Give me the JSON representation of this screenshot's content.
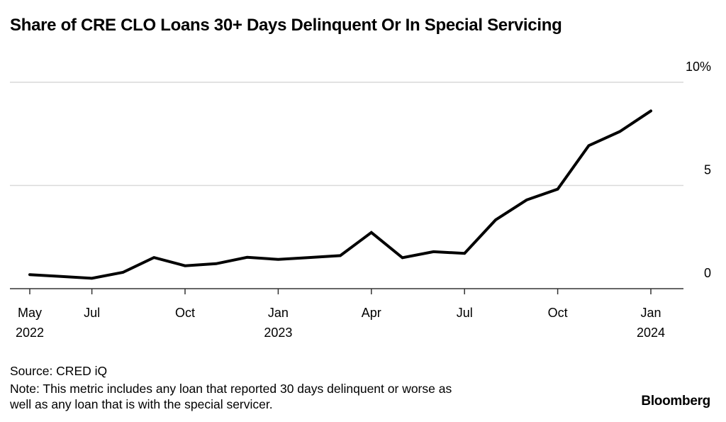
{
  "chart_data": {
    "type": "line",
    "title": "Share of CRE CLO Loans 30+ Days Delinquent Or In Special Servicing",
    "xlabel": "",
    "ylabel": "",
    "ylim": [
      0,
      10
    ],
    "yticks": [
      0,
      5,
      10
    ],
    "ytick_labels": [
      "0",
      "5",
      "10%"
    ],
    "grid": true,
    "x": [
      "2022-05",
      "2022-06",
      "2022-07",
      "2022-08",
      "2022-09",
      "2022-10",
      "2022-11",
      "2022-12",
      "2023-01",
      "2023-02",
      "2023-03",
      "2023-04",
      "2023-05",
      "2023-06",
      "2023-07",
      "2023-08",
      "2023-09",
      "2023-10",
      "2023-11",
      "2023-12",
      "2024-01"
    ],
    "series": [
      {
        "name": "Share delinquent or in special servicing",
        "color": "#000000",
        "values": [
          0.68,
          0.59,
          0.5,
          0.79,
          1.51,
          1.11,
          1.21,
          1.52,
          1.42,
          1.51,
          1.6,
          2.72,
          1.5,
          1.79,
          1.71,
          3.33,
          4.3,
          4.82,
          6.93,
          7.61,
          8.61
        ]
      }
    ],
    "xticks": [
      {
        "index": 0,
        "label": "May",
        "sub": "2022"
      },
      {
        "index": 2,
        "label": "Jul",
        "sub": ""
      },
      {
        "index": 5,
        "label": "Oct",
        "sub": ""
      },
      {
        "index": 8,
        "label": "Jan",
        "sub": "2023"
      },
      {
        "index": 11,
        "label": "Apr",
        "sub": ""
      },
      {
        "index": 14,
        "label": "Jul",
        "sub": ""
      },
      {
        "index": 17,
        "label": "Oct",
        "sub": ""
      },
      {
        "index": 20,
        "label": "Jan",
        "sub": "2024"
      }
    ]
  },
  "footer": {
    "source": "Source: CRED iQ",
    "note_line1": "Note: This metric includes any loan that reported 30 days delinquent or worse as",
    "note_line2": "well as any loan that is with the special servicer.",
    "brand": "Bloomberg"
  }
}
